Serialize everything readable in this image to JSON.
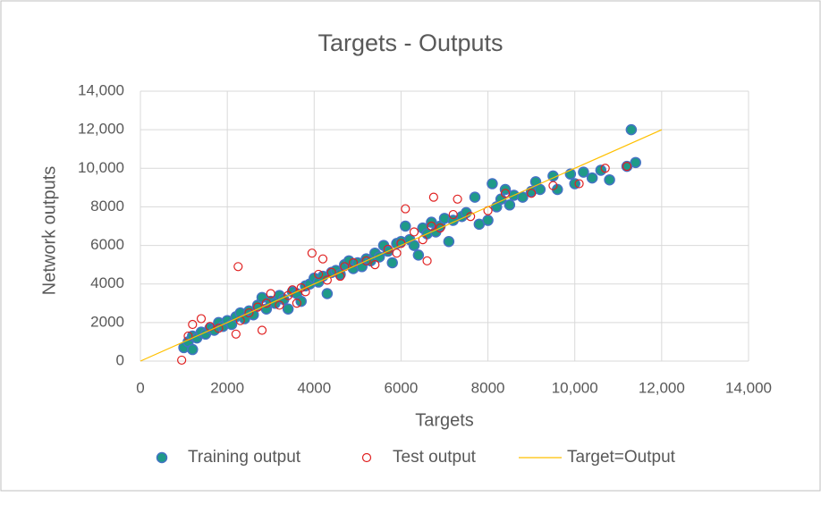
{
  "chart_data": {
    "type": "scatter",
    "title": "Targets - Outputs",
    "xlabel": "Targets",
    "ylabel": "Network outputs",
    "xlim": [
      0,
      14000
    ],
    "ylim": [
      0,
      14000
    ],
    "xticks": [
      0,
      2000,
      4000,
      6000,
      8000,
      {
        "value": 10000,
        "label": "10,000"
      },
      {
        "value": 12000,
        "label": "12,000"
      },
      {
        "value": 14000,
        "label": "14,000"
      }
    ],
    "yticks": [
      0,
      2000,
      4000,
      6000,
      8000,
      {
        "value": 10000,
        "label": "10,000"
      },
      {
        "value": 12000,
        "label": "12,000"
      },
      {
        "value": 14000,
        "label": "14,000"
      }
    ],
    "grid": true,
    "legend": "bottom",
    "series": [
      {
        "name": "Training output",
        "kind": "filled",
        "color": "#1f9a88",
        "edgecolor": "#4472c4",
        "x": [
          1000,
          1100,
          1200,
          1200,
          1300,
          1400,
          1500,
          1600,
          1700,
          1800,
          1900,
          2000,
          2100,
          2200,
          2300,
          2400,
          2500,
          2600,
          2700,
          2800,
          2900,
          3000,
          3100,
          3200,
          3300,
          3400,
          3500,
          3600,
          3700,
          3800,
          3900,
          4000,
          4100,
          4200,
          4300,
          4400,
          4500,
          4600,
          4700,
          4800,
          4900,
          5000,
          5100,
          5200,
          5300,
          5400,
          5500,
          5600,
          5700,
          5800,
          5900,
          6000,
          6100,
          6200,
          6300,
          6400,
          6500,
          6600,
          6700,
          6800,
          6900,
          7000,
          7100,
          7200,
          7400,
          7500,
          7700,
          7800,
          8000,
          8100,
          8200,
          8300,
          8400,
          8500,
          8600,
          8800,
          9000,
          9100,
          9200,
          9500,
          9600,
          9900,
          10000,
          10200,
          10400,
          10600,
          10800,
          11200,
          11300,
          11400
        ],
        "values": [
          700,
          1000,
          600,
          1300,
          1200,
          1500,
          1400,
          1700,
          1600,
          2000,
          1800,
          2100,
          1900,
          2300,
          2500,
          2200,
          2600,
          2400,
          2900,
          3300,
          2700,
          3100,
          3000,
          3400,
          3200,
          2700,
          3600,
          3500,
          3100,
          3900,
          4000,
          4300,
          4100,
          4400,
          3500,
          4600,
          4700,
          4500,
          5000,
          5200,
          4800,
          5100,
          4900,
          5300,
          5200,
          5600,
          5400,
          6000,
          5700,
          5100,
          6100,
          6200,
          7000,
          6300,
          6000,
          5500,
          6900,
          6600,
          7200,
          6700,
          7000,
          7400,
          6200,
          7300,
          7500,
          7700,
          8500,
          7100,
          7300,
          9200,
          8000,
          8400,
          8900,
          8100,
          8600,
          8500,
          8800,
          9300,
          8900,
          9600,
          8900,
          9700,
          9200,
          9800,
          9500,
          9900,
          9400,
          10100,
          12000,
          10300
        ]
      },
      {
        "name": "Test output",
        "kind": "open",
        "color": "#e02020",
        "x": [
          950,
          1100,
          1200,
          1400,
          1600,
          1800,
          2200,
          2250,
          2300,
          2500,
          2700,
          2800,
          2900,
          3000,
          3200,
          3400,
          3500,
          3600,
          3700,
          3800,
          3950,
          4100,
          4200,
          4300,
          4400,
          4600,
          4700,
          4900,
          5200,
          5400,
          5700,
          5900,
          6000,
          6100,
          6300,
          6500,
          6600,
          6700,
          6750,
          6900,
          7200,
          7300,
          7600,
          8000,
          8400,
          9000,
          9500,
          10100,
          10700,
          11200
        ],
        "values": [
          50,
          1300,
          1900,
          2200,
          1800,
          1700,
          1400,
          4900,
          2100,
          2500,
          2800,
          1600,
          3000,
          3500,
          2900,
          3400,
          3700,
          3000,
          3800,
          3600,
          5600,
          4500,
          5300,
          4200,
          4600,
          4400,
          4900,
          5100,
          5200,
          5000,
          5800,
          5600,
          6100,
          7900,
          6700,
          6300,
          5200,
          7000,
          8500,
          6900,
          7600,
          8400,
          7500,
          7800,
          8700,
          8700,
          9100,
          9200,
          10000,
          10100
        ]
      },
      {
        "name": "Target=Output",
        "kind": "line",
        "color": "#ffc000",
        "x": [
          0,
          12000
        ],
        "values": [
          0,
          12000
        ]
      }
    ]
  }
}
